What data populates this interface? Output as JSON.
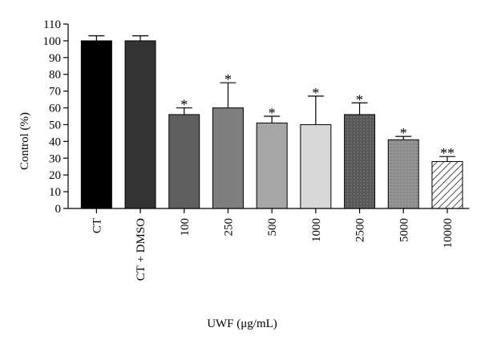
{
  "chart_data": {
    "type": "bar",
    "categories": [
      "CT",
      "CT + DMSO",
      "100",
      "250",
      "500",
      "1000",
      "2500",
      "5000",
      "10000"
    ],
    "values": [
      100,
      100,
      56,
      60,
      51,
      50,
      56,
      41,
      28
    ],
    "error": [
      3,
      3,
      4,
      15,
      4,
      17,
      7,
      2,
      3
    ],
    "significance": [
      "",
      "",
      "*",
      "*",
      "*",
      "*",
      "*",
      "*",
      "**"
    ],
    "fills": [
      "#000000",
      "#333333",
      "#5f5f5f",
      "#7f7f7f",
      "#a6a6a6",
      "#d8d8d8",
      "#595959",
      "#8c8c8c",
      "hatch"
    ],
    "ylabel": "Control (%)",
    "xlabel": "UWF (μg/mL)",
    "ylim": [
      0,
      110
    ],
    "yticks": [
      0,
      10,
      20,
      30,
      40,
      50,
      60,
      70,
      80,
      90,
      100,
      110
    ]
  }
}
